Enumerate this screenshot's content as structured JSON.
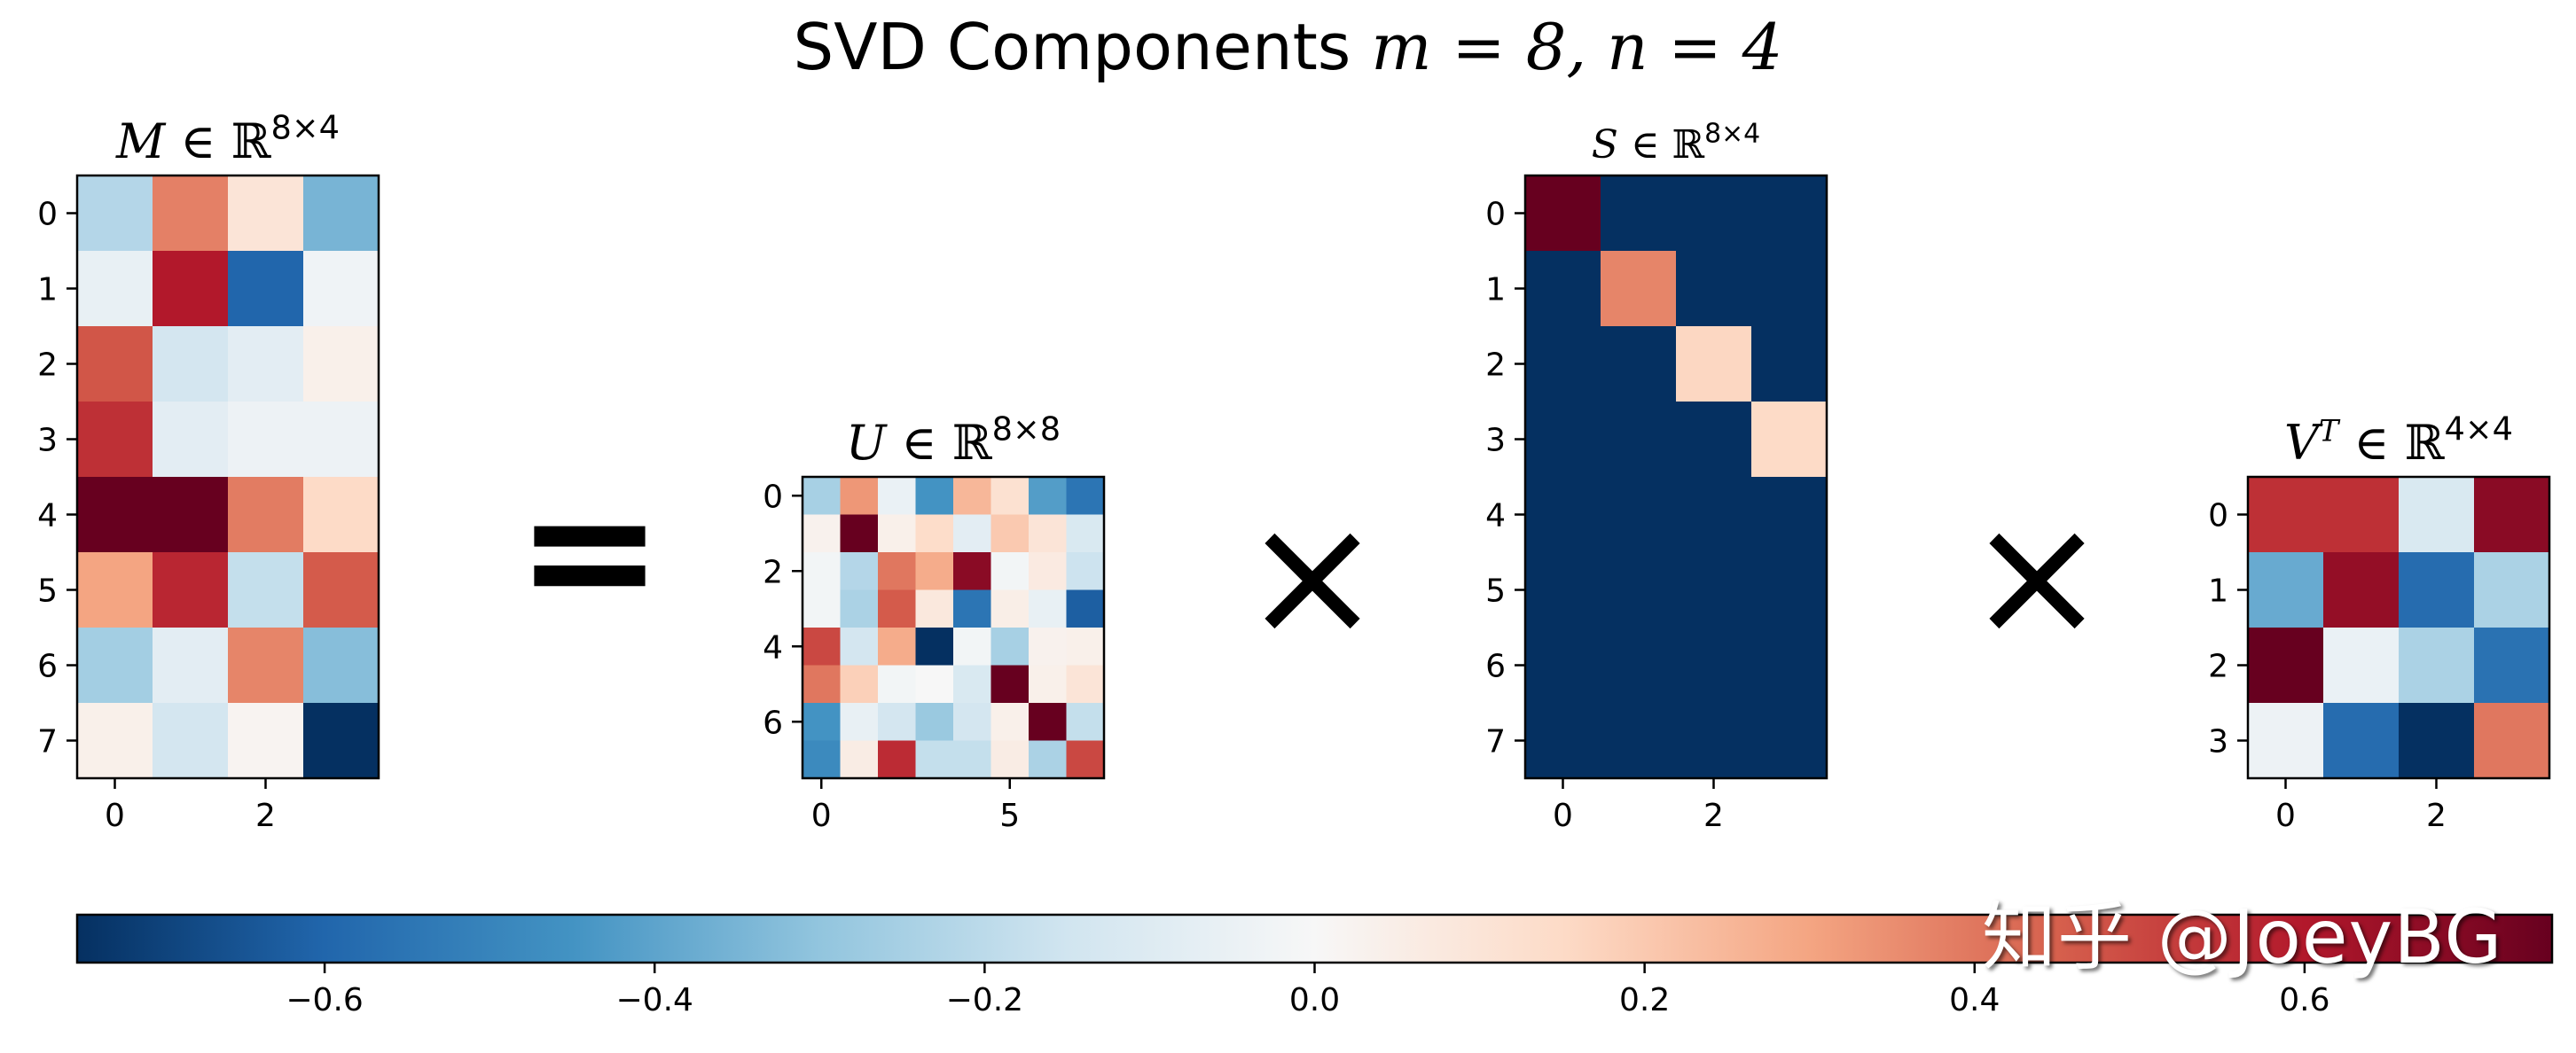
{
  "title": {
    "prefix": "SVD Components ",
    "math": "m = 8, n = 4"
  },
  "operators": {
    "equals": "=",
    "times1": "×",
    "times2": "×"
  },
  "watermark": "知乎 @JoeyBG",
  "colors": {
    "colormap": "RdBu_r",
    "frame": "#000000"
  },
  "chart_data": [
    {
      "type": "heatmap",
      "name": "M",
      "title": "M ∈ ℝ8×4",
      "rows": 8,
      "cols": 4,
      "yticks": [
        0,
        1,
        2,
        3,
        4,
        5,
        6,
        7
      ],
      "xticks": [
        0,
        2
      ],
      "values": [
        [
          -0.22,
          0.38,
          0.1,
          -0.35
        ],
        [
          -0.06,
          0.6,
          -0.6,
          -0.03
        ],
        [
          0.47,
          -0.14,
          -0.08,
          0.04
        ],
        [
          0.55,
          -0.08,
          -0.04,
          -0.04
        ],
        [
          0.75,
          0.75,
          0.39,
          0.15
        ],
        [
          0.3,
          0.57,
          -0.18,
          0.46
        ],
        [
          -0.26,
          -0.08,
          0.37,
          -0.32
        ],
        [
          0.04,
          -0.14,
          0.02,
          -0.75
        ]
      ]
    },
    {
      "type": "heatmap",
      "name": "U",
      "title": "U ∈ ℝ8×8",
      "rows": 8,
      "cols": 8,
      "yticks": [
        0,
        2,
        4,
        6
      ],
      "xticks": [
        0,
        5
      ],
      "values": [
        [
          -0.25,
          0.33,
          -0.05,
          -0.45,
          0.25,
          0.12,
          -0.42,
          -0.55
        ],
        [
          0.03,
          0.75,
          0.04,
          0.14,
          -0.08,
          0.2,
          0.1,
          -0.12
        ],
        [
          -0.02,
          -0.22,
          0.4,
          0.28,
          0.68,
          -0.02,
          0.07,
          -0.16
        ],
        [
          -0.02,
          -0.24,
          0.46,
          0.08,
          -0.55,
          0.05,
          -0.06,
          -0.62
        ],
        [
          0.5,
          -0.14,
          0.28,
          -0.75,
          -0.02,
          -0.25,
          0.03,
          0.04
        ],
        [
          0.4,
          0.18,
          -0.02,
          0.0,
          -0.12,
          0.75,
          0.04,
          0.1
        ],
        [
          -0.45,
          -0.06,
          -0.14,
          -0.28,
          -0.14,
          0.04,
          0.75,
          -0.18
        ],
        [
          -0.48,
          0.06,
          0.56,
          -0.18,
          -0.18,
          0.06,
          -0.24,
          0.5
        ]
      ]
    },
    {
      "type": "heatmap",
      "name": "S",
      "title": "S ∈ ℝ8×4",
      "rows": 8,
      "cols": 4,
      "yticks": [
        0,
        1,
        2,
        3,
        4,
        5,
        6,
        7
      ],
      "xticks": [
        0,
        2
      ],
      "values": [
        [
          0.75,
          -0.75,
          -0.75,
          -0.75
        ],
        [
          -0.75,
          0.37,
          -0.75,
          -0.75
        ],
        [
          -0.75,
          -0.75,
          0.16,
          -0.75
        ],
        [
          -0.75,
          -0.75,
          -0.75,
          0.15
        ],
        [
          -0.75,
          -0.75,
          -0.75,
          -0.75
        ],
        [
          -0.75,
          -0.75,
          -0.75,
          -0.75
        ],
        [
          -0.75,
          -0.75,
          -0.75,
          -0.75
        ],
        [
          -0.75,
          -0.75,
          -0.75,
          -0.75
        ]
      ]
    },
    {
      "type": "heatmap",
      "name": "VT",
      "title": "VT ∈ ℝ4×4",
      "rows": 4,
      "cols": 4,
      "yticks": [
        0,
        1,
        2,
        3
      ],
      "xticks": [
        0,
        2
      ],
      "values": [
        [
          0.55,
          0.55,
          -0.12,
          0.68
        ],
        [
          -0.38,
          0.66,
          -0.58,
          -0.24
        ],
        [
          0.75,
          -0.05,
          -0.24,
          -0.56
        ],
        [
          -0.04,
          -0.58,
          -0.75,
          0.4
        ]
      ]
    },
    {
      "type": "colorbar",
      "name": "colorbar",
      "vmin": -0.75,
      "vmax": 0.75,
      "ticks": [
        -0.6,
        -0.4,
        -0.2,
        0.0,
        0.2,
        0.4,
        0.6
      ],
      "tick_labels": [
        "−0.6",
        "−0.4",
        "−0.2",
        "0.0",
        "0.2",
        "0.4",
        "0.6"
      ]
    }
  ]
}
